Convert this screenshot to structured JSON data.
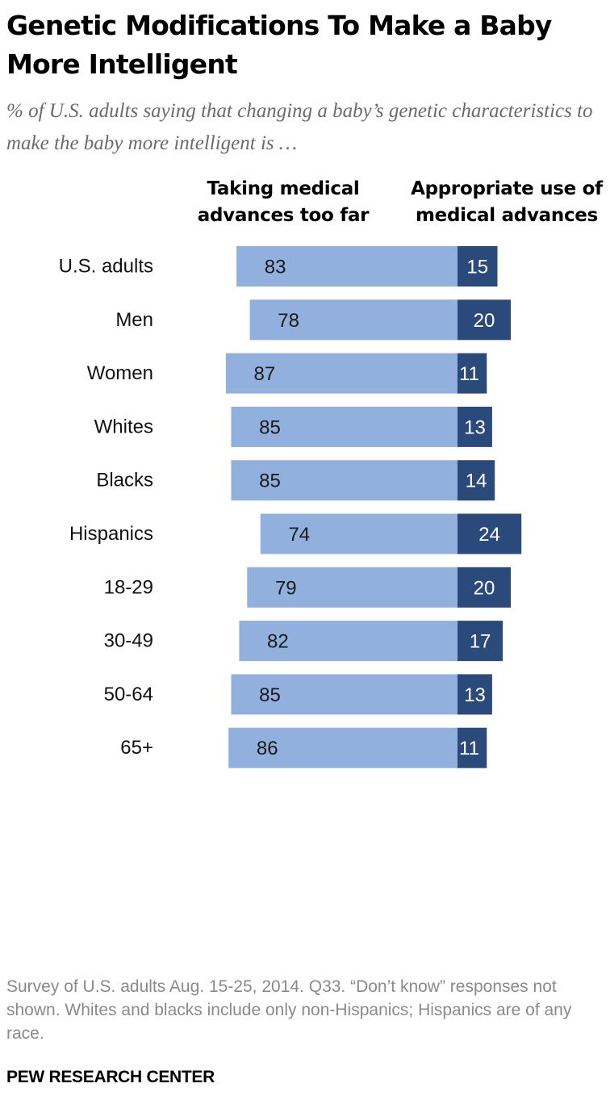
{
  "title": "Genetic Modifications To Make a Baby More Intelligent",
  "subtitle": "% of U.S. adults saying that changing a baby’s genetic characteristics to make the baby more intelligent is …",
  "footnote": "Survey of U.S. adults Aug. 15-25, 2014. Q33. “Don’t know” responses not shown. Whites and blacks include only non-Hispanics; Hispanics are of any race.",
  "source": "PEW RESEARCH CENTER",
  "colors": {
    "left_bar": "#92b0dd",
    "right_bar": "#2b4a7c",
    "left_text": "#1a1a1a",
    "right_text": "#ffffff"
  },
  "chart_data": {
    "type": "bar",
    "orientation": "horizontal-diverging",
    "categories": [
      "U.S. adults",
      "Men",
      "Women",
      "Whites",
      "Blacks",
      "Hispanics",
      "18-29",
      "30-49",
      "50-64",
      "65+"
    ],
    "groups": [
      [
        "U.S. adults"
      ],
      [
        "Men",
        "Women"
      ],
      [
        "Whites",
        "Blacks",
        "Hispanics"
      ],
      [
        "18-29",
        "30-49",
        "50-64",
        "65+"
      ]
    ],
    "series": [
      {
        "name": "Taking medical advances too far",
        "values": [
          83,
          78,
          87,
          85,
          85,
          74,
          79,
          82,
          85,
          86
        ]
      },
      {
        "name": "Appropriate use of medical advances",
        "values": [
          15,
          20,
          11,
          13,
          14,
          24,
          20,
          17,
          13,
          11
        ]
      }
    ]
  }
}
